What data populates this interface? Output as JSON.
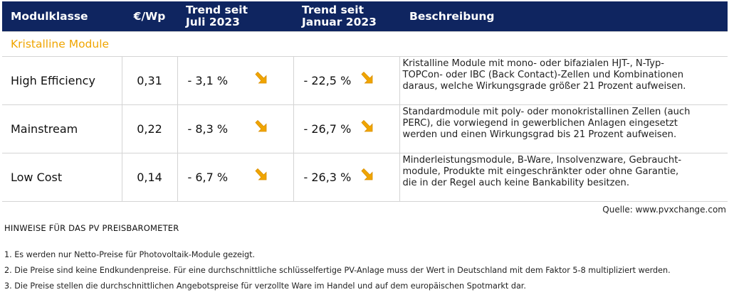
{
  "table": {
    "headers": {
      "modulklasse": "Modulklasse",
      "price": "€/Wp",
      "trend1": [
        "Trend seit",
        "Juli 2023"
      ],
      "trend2": [
        "Trend seit",
        "Januar 2023"
      ],
      "beschreibung": "Beschreibung"
    },
    "section_label": "Kristalline Module",
    "rows": [
      {
        "name": "High Efficiency",
        "price": "0,31",
        "trend_jul": "- 3,1 %",
        "trend_jan": "- 22,5 %",
        "description": "Kristalline Module mit mono- oder bifazialen HJT-, N-Typ-\nTOPCon- oder IBC (Back Contact)-Zellen und Kombinationen\ndaraus, welche Wirkungsgrade größer 21 Prozent aufweisen."
      },
      {
        "name": "Mainstream",
        "price": "0,22",
        "trend_jul": "- 8,3 %",
        "trend_jan": "- 26,7 %",
        "description": "Standardmodule mit poly- oder monokristallinen Zellen (auch\nPERC), die vorwiegend in gewerblichen Anlagen eingesetzt\nwerden und einen Wirkungsgrad bis 21 Prozent aufweisen."
      },
      {
        "name": "Low Cost",
        "price": "0,14",
        "trend_jul": "- 6,7 %",
        "trend_jan": "- 26,3 %",
        "description": "Minderleistungsmodule, B-Ware, Insolvenzware, Gebraucht-\nmodule, Produkte mit eingeschränkter oder ohne Garantie,\ndie in der Regel auch keine Bankability besitzen."
      }
    ],
    "trend_icon": "arrow-down-right-icon",
    "colors": {
      "header_bg": "#0f2560",
      "accent": "#f0a500"
    }
  },
  "source": "Quelle: www.pvxchange.com",
  "notes": {
    "title": "HINWEISE FÜR DAS PV PREISBAROMETER",
    "items": [
      "1.  Es werden nur Netto-Preise für Photovoltaik-Module gezeigt.",
      "2. Die Preise sind keine Endkundenpreise. Für eine durchschnittliche schlüsselfertige PV-Anlage muss der Wert in Deutschland mit dem Faktor 5-8 multipliziert werden.",
      "3. Die Preise stellen die durchschnittlichen Angebotspreise für verzollte Ware im Handel und auf dem europäischen Spotmarkt dar."
    ]
  }
}
